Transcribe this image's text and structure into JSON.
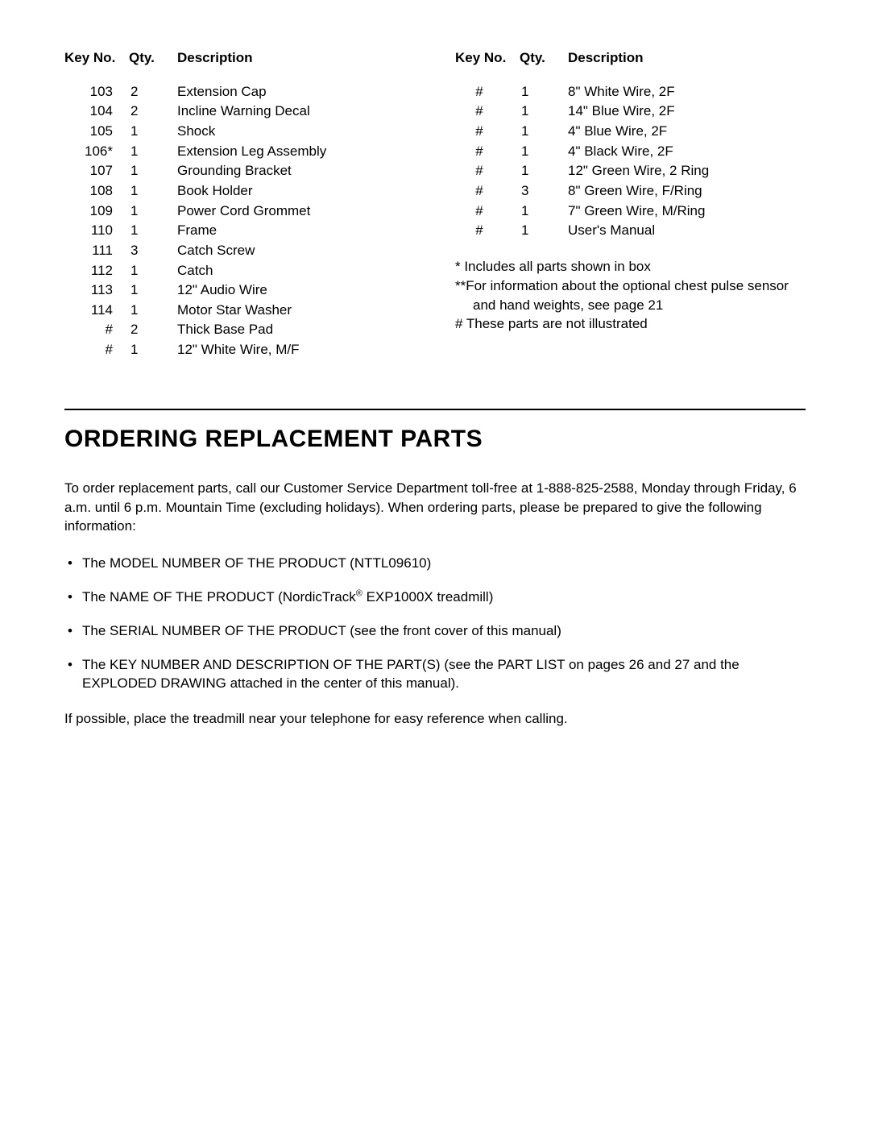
{
  "headers": {
    "keyno": "Key No.",
    "qty": "Qty.",
    "description": "Description"
  },
  "leftParts": [
    {
      "keyno": "103",
      "qty": "2",
      "desc": "Extension Cap"
    },
    {
      "keyno": "104",
      "qty": "2",
      "desc": "Incline Warning Decal"
    },
    {
      "keyno": "105",
      "qty": "1",
      "desc": "Shock"
    },
    {
      "keyno": "106*",
      "qty": "1",
      "desc": "Extension Leg Assembly"
    },
    {
      "keyno": "107",
      "qty": "1",
      "desc": "Grounding Bracket"
    },
    {
      "keyno": "108",
      "qty": "1",
      "desc": "Book Holder"
    },
    {
      "keyno": "109",
      "qty": "1",
      "desc": "Power Cord Grommet"
    },
    {
      "keyno": "110",
      "qty": "1",
      "desc": "Frame"
    },
    {
      "keyno": "111",
      "qty": "3",
      "desc": "Catch Screw"
    },
    {
      "keyno": "112",
      "qty": "1",
      "desc": "Catch"
    },
    {
      "keyno": "113",
      "qty": "1",
      "desc": "12\" Audio Wire"
    },
    {
      "keyno": "114",
      "qty": "1",
      "desc": "Motor Star Washer"
    },
    {
      "keyno": "#",
      "qty": "2",
      "desc": "Thick Base Pad"
    },
    {
      "keyno": "#",
      "qty": "1",
      "desc": "12\" White Wire, M/F"
    }
  ],
  "rightParts": [
    {
      "keyno": "#",
      "qty": "1",
      "desc": "8\" White Wire, 2F"
    },
    {
      "keyno": "#",
      "qty": "1",
      "desc": "14\" Blue Wire, 2F"
    },
    {
      "keyno": "#",
      "qty": "1",
      "desc": "4\" Blue Wire, 2F"
    },
    {
      "keyno": "#",
      "qty": "1",
      "desc": "4\" Black Wire, 2F"
    },
    {
      "keyno": "#",
      "qty": "1",
      "desc": "12\" Green Wire, 2 Ring"
    },
    {
      "keyno": "#",
      "qty": "3",
      "desc": "8\" Green Wire, F/Ring"
    },
    {
      "keyno": "#",
      "qty": "1",
      "desc": "7\" Green Wire, M/Ring"
    },
    {
      "keyno": "#",
      "qty": "1",
      "desc": "User's Manual"
    }
  ],
  "footnotes": {
    "line1": "* Includes all parts shown in box",
    "line2": "**For information about the optional chest pulse sensor",
    "line3": "and hand weights, see page 21",
    "line4": "# These parts are not illustrated"
  },
  "section": {
    "heading": "ORDERING REPLACEMENT PARTS",
    "intro": "To order replacement parts, call our Customer Service Department toll-free at 1-888-825-2588, Monday through Friday, 6 a.m. until 6 p.m. Mountain Time (excluding holidays). When ordering parts, please be prepared to give the following information:",
    "bullets": {
      "b1": "The MODEL NUMBER OF THE PRODUCT (NTTL09610)",
      "b2_pre": "The NAME OF THE PRODUCT (NordicTrack",
      "b2_reg": "®",
      "b2_post": " EXP1000X treadmill)",
      "b3": "The SERIAL NUMBER OF THE PRODUCT (see the front cover of this manual)",
      "b4": "The KEY NUMBER AND DESCRIPTION OF THE PART(S) (see the PART LIST on pages 26 and 27 and the EXPLODED DRAWING attached in the center of this manual)."
    },
    "outro": "If possible, place the treadmill near your telephone for easy reference when calling."
  }
}
